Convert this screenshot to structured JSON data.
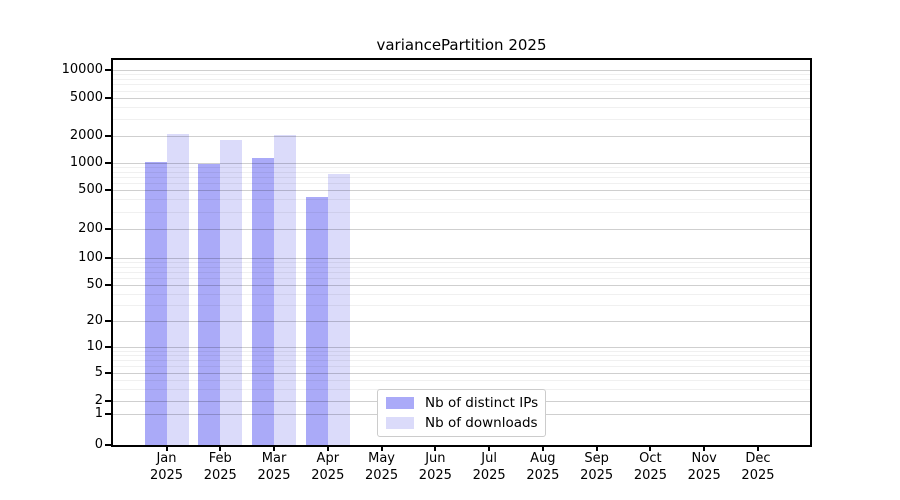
{
  "chart_data": {
    "type": "bar",
    "title": "variancePartition 2025",
    "x_axis": {
      "categories": [
        {
          "month": "Jan",
          "year": "2025"
        },
        {
          "month": "Feb",
          "year": "2025"
        },
        {
          "month": "Mar",
          "year": "2025"
        },
        {
          "month": "Apr",
          "year": "2025"
        },
        {
          "month": "May",
          "year": "2025"
        },
        {
          "month": "Jun",
          "year": "2025"
        },
        {
          "month": "Jul",
          "year": "2025"
        },
        {
          "month": "Aug",
          "year": "2025"
        },
        {
          "month": "Sep",
          "year": "2025"
        },
        {
          "month": "Oct",
          "year": "2025"
        },
        {
          "month": "Nov",
          "year": "2025"
        },
        {
          "month": "Dec",
          "year": "2025"
        }
      ]
    },
    "y_axis": {
      "scale": "symlog",
      "ticks": [
        0,
        1,
        2,
        5,
        10,
        20,
        50,
        100,
        200,
        500,
        1000,
        2000,
        5000,
        10000
      ],
      "minor_gridlines": true
    },
    "series": [
      {
        "name": "Nb of distinct IPs",
        "color": "#aaaaf8",
        "values": [
          1030,
          970,
          1130,
          420,
          null,
          null,
          null,
          null,
          null,
          null,
          null,
          null
        ]
      },
      {
        "name": "Nb of downloads",
        "color": "#dbdbfa",
        "values": [
          2120,
          1800,
          2050,
          750,
          null,
          null,
          null,
          null,
          null,
          null,
          null,
          null
        ]
      }
    ],
    "legend": {
      "position": "lower center"
    },
    "grid": "on"
  }
}
